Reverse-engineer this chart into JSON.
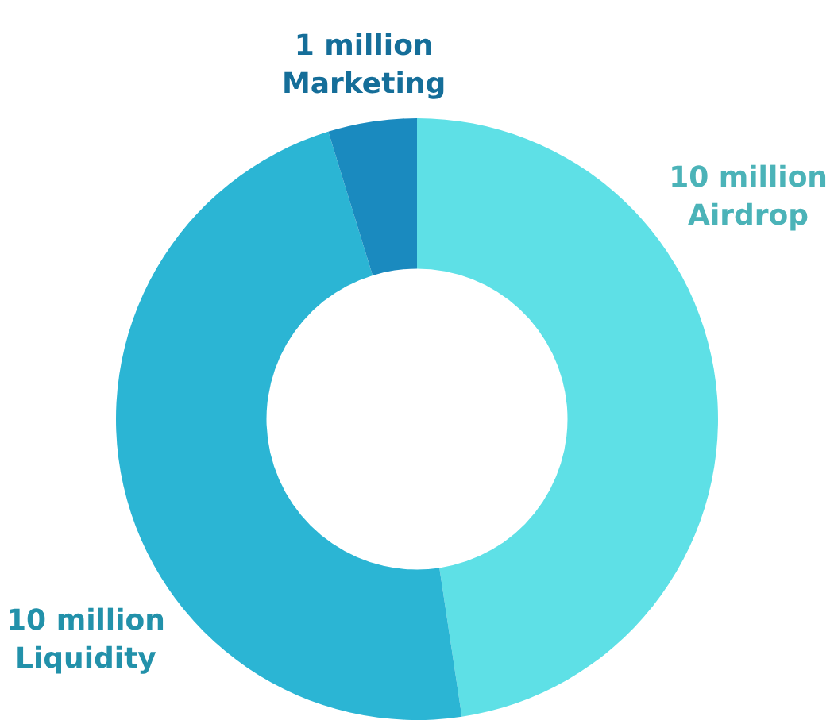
{
  "chart_data": {
    "type": "donut",
    "categories": [
      "Airdrop",
      "Liquidity",
      "Marketing"
    ],
    "values": [
      10,
      10,
      1
    ],
    "colors": [
      "#5ee0e6",
      "#2bb5d4",
      "#1a8abf"
    ],
    "value_labels": [
      "10 million",
      "10 million",
      "1 million"
    ],
    "legend": false
  }
}
